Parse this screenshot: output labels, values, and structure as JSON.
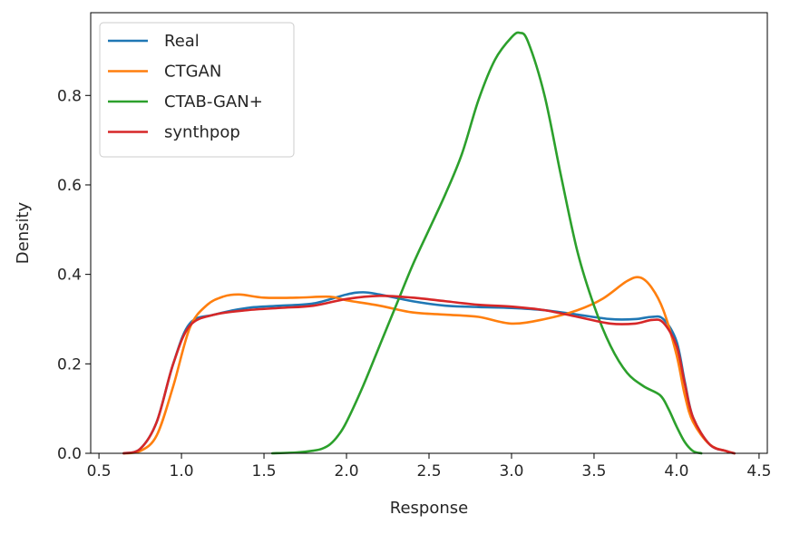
{
  "chart_data": {
    "type": "line",
    "title": "",
    "xlabel": "Response",
    "ylabel": "Density",
    "xlim": [
      0.45,
      4.55
    ],
    "ylim": [
      0,
      0.985
    ],
    "xticks": [
      0.5,
      1.0,
      1.5,
      2.0,
      2.5,
      3.0,
      3.5,
      4.0,
      4.5
    ],
    "xtick_labels": [
      "0.5",
      "1.0",
      "1.5",
      "2.0",
      "2.5",
      "3.0",
      "3.5",
      "4.0",
      "4.5"
    ],
    "yticks": [
      0.0,
      0.2,
      0.4,
      0.6,
      0.8
    ],
    "ytick_labels": [
      "0.0",
      "0.2",
      "0.4",
      "0.6",
      "0.8"
    ],
    "grid": false,
    "legend_position": "top-left",
    "series": [
      {
        "name": "Real",
        "color": "#1f77b4",
        "x": [
          0.65,
          0.75,
          0.85,
          0.95,
          1.05,
          1.2,
          1.4,
          1.6,
          1.8,
          2.0,
          2.1,
          2.2,
          2.4,
          2.6,
          2.8,
          3.0,
          3.2,
          3.4,
          3.6,
          3.75,
          3.85,
          3.92,
          4.0,
          4.05,
          4.1,
          4.2,
          4.3,
          4.35
        ],
        "y": [
          0.0,
          0.01,
          0.07,
          0.2,
          0.29,
          0.31,
          0.325,
          0.33,
          0.335,
          0.355,
          0.36,
          0.355,
          0.34,
          0.33,
          0.327,
          0.325,
          0.32,
          0.31,
          0.3,
          0.3,
          0.305,
          0.3,
          0.25,
          0.16,
          0.08,
          0.02,
          0.005,
          0.0
        ]
      },
      {
        "name": "CTGAN",
        "color": "#ff7f0e",
        "x": [
          0.65,
          0.75,
          0.85,
          0.95,
          1.05,
          1.15,
          1.25,
          1.35,
          1.5,
          1.7,
          1.9,
          2.0,
          2.2,
          2.4,
          2.6,
          2.8,
          3.0,
          3.2,
          3.4,
          3.55,
          3.7,
          3.78,
          3.85,
          3.92,
          4.0,
          4.05,
          4.1,
          4.2,
          4.3,
          4.35
        ],
        "y": [
          0.0,
          0.005,
          0.04,
          0.15,
          0.28,
          0.33,
          0.35,
          0.355,
          0.348,
          0.348,
          0.35,
          0.342,
          0.33,
          0.315,
          0.31,
          0.305,
          0.29,
          0.3,
          0.32,
          0.345,
          0.385,
          0.393,
          0.37,
          0.32,
          0.22,
          0.13,
          0.07,
          0.02,
          0.005,
          0.0
        ]
      },
      {
        "name": "CTAB-GAN+",
        "color": "#2ca02c",
        "x": [
          1.55,
          1.7,
          1.8,
          1.85,
          1.9,
          1.95,
          2.0,
          2.1,
          2.2,
          2.3,
          2.4,
          2.5,
          2.6,
          2.7,
          2.8,
          2.9,
          3.0,
          3.05,
          3.1,
          3.2,
          3.3,
          3.4,
          3.5,
          3.6,
          3.7,
          3.8,
          3.9,
          3.95,
          4.0,
          4.05,
          4.1,
          4.15
        ],
        "y": [
          0.0,
          0.002,
          0.006,
          0.01,
          0.02,
          0.04,
          0.07,
          0.15,
          0.24,
          0.33,
          0.42,
          0.5,
          0.58,
          0.67,
          0.79,
          0.88,
          0.93,
          0.94,
          0.92,
          0.8,
          0.62,
          0.45,
          0.33,
          0.24,
          0.18,
          0.15,
          0.13,
          0.1,
          0.06,
          0.025,
          0.005,
          0.0
        ]
      },
      {
        "name": "synthpop",
        "color": "#d62728",
        "x": [
          0.65,
          0.75,
          0.85,
          0.95,
          1.05,
          1.2,
          1.4,
          1.6,
          1.8,
          2.0,
          2.2,
          2.4,
          2.6,
          2.8,
          3.0,
          3.2,
          3.4,
          3.6,
          3.75,
          3.85,
          3.92,
          4.0,
          4.05,
          4.1,
          4.2,
          4.3,
          4.35
        ],
        "y": [
          0.0,
          0.01,
          0.07,
          0.2,
          0.285,
          0.31,
          0.32,
          0.325,
          0.33,
          0.345,
          0.352,
          0.348,
          0.34,
          0.332,
          0.328,
          0.32,
          0.305,
          0.29,
          0.29,
          0.298,
          0.292,
          0.24,
          0.155,
          0.08,
          0.02,
          0.005,
          0.0
        ]
      }
    ]
  }
}
